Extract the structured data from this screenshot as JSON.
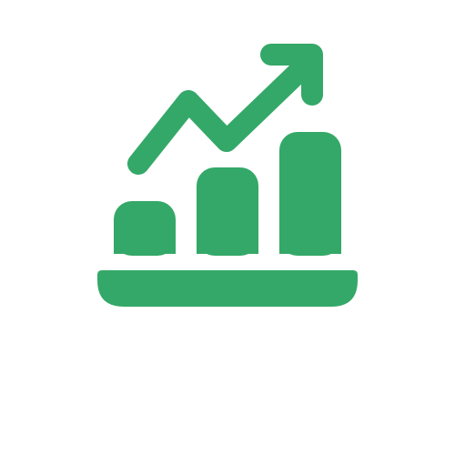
{
  "icon": {
    "name": "growth-chart-icon",
    "color": "#34A868",
    "background": "#FFFFFF",
    "bars": [
      {
        "name": "bar-small",
        "level": 0.44
      },
      {
        "name": "bar-medium",
        "level": 0.73
      },
      {
        "name": "bar-large",
        "level": 1.0
      }
    ],
    "trend": "upward-arrow"
  }
}
